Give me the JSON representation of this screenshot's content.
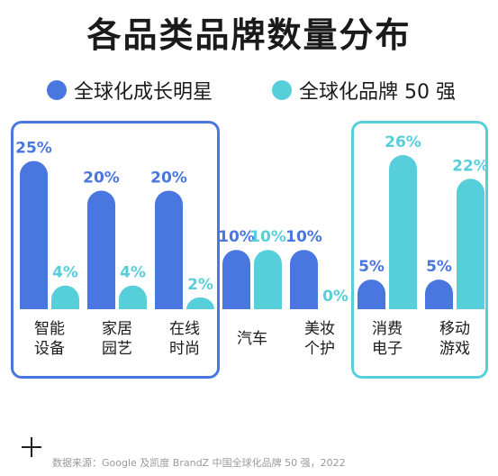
{
  "title": "各品类品牌数量分布",
  "legend": [
    {
      "label": "全球化成长明星",
      "color": "#4a76e0"
    },
    {
      "label": "全球化品牌 50 强",
      "color": "#57cfdb"
    }
  ],
  "box_colors": {
    "left": "#4a76e0",
    "right": "#57cfdb"
  },
  "source": "数据来源：Google 及凯度 BrandZ 中国全球化品牌 50 强，2022",
  "chart_data": {
    "type": "bar",
    "title": "各品类品牌数量分布",
    "categories": [
      {
        "lines": [
          "智能",
          "设备"
        ]
      },
      {
        "lines": [
          "家居",
          "园艺"
        ]
      },
      {
        "lines": [
          "在线",
          "时尚"
        ]
      },
      {
        "lines": [
          "汽车"
        ]
      },
      {
        "lines": [
          "美妆",
          "个护"
        ]
      },
      {
        "lines": [
          "消费",
          "电子"
        ]
      },
      {
        "lines": [
          "移动",
          "游戏"
        ]
      }
    ],
    "series": [
      {
        "name": "全球化成长明星",
        "color": "#4a76e0",
        "values": [
          25,
          20,
          20,
          10,
          10,
          5,
          5
        ],
        "labels": [
          "25%",
          "20%",
          "20%",
          "10%",
          "10%",
          "5%",
          "5%"
        ]
      },
      {
        "name": "全球化品牌 50 强",
        "color": "#57cfdb",
        "values": [
          4,
          4,
          2,
          10,
          0,
          26,
          22
        ],
        "labels": [
          "4%",
          "4%",
          "2%",
          "10%",
          "0%",
          "26%",
          "22%"
        ]
      }
    ],
    "unit": "%",
    "ylim": [
      0,
      26
    ],
    "highlight_groups": [
      {
        "categories": [
          0,
          1,
          2
        ],
        "color": "#4a76e0"
      },
      {
        "categories": [
          5,
          6
        ],
        "color": "#57cfdb"
      }
    ]
  }
}
